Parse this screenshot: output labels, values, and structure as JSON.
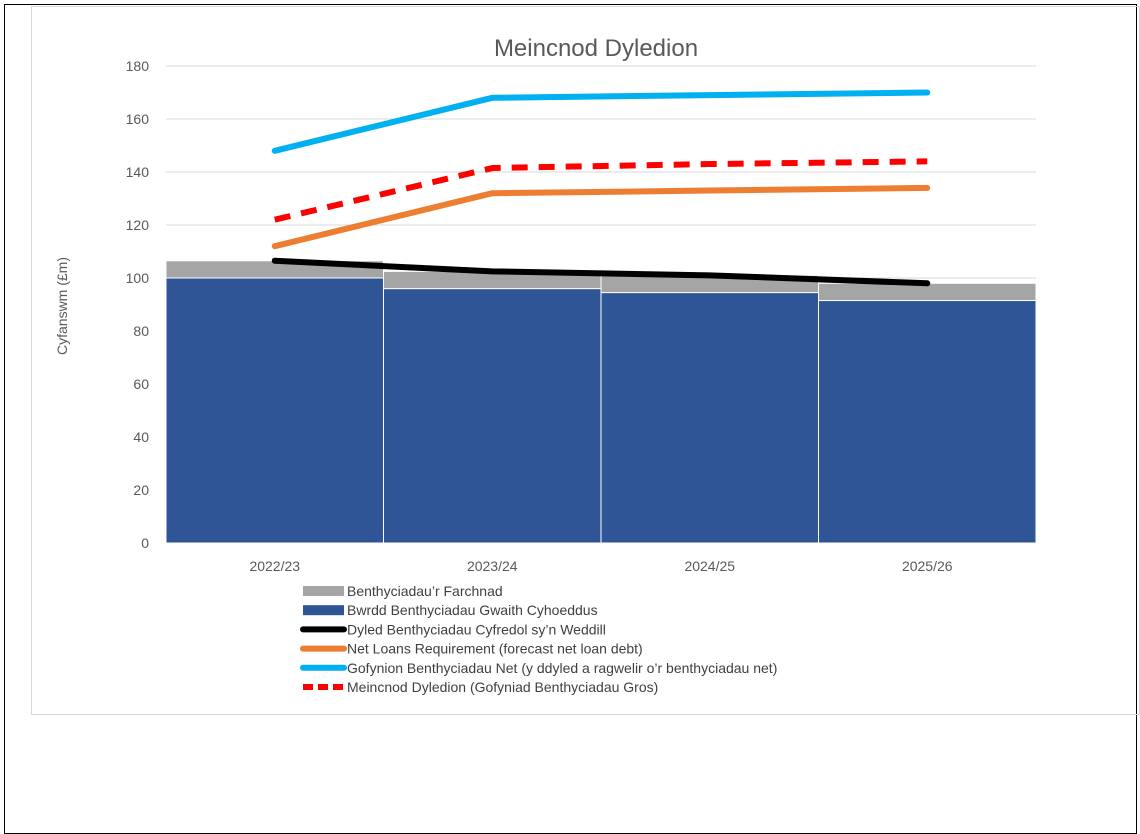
{
  "chart_data": {
    "type": "bar",
    "stacked": true,
    "title": "Meincnod Dyledion",
    "xlabel": "",
    "ylabel": "Cyfanswm (£m)",
    "ylim": [
      0,
      180
    ],
    "yticks": [
      0,
      20,
      40,
      60,
      80,
      100,
      120,
      140,
      160,
      180
    ],
    "grid": true,
    "legend_position": "bottom",
    "categories": [
      "2022/23",
      "2023/24",
      "2024/25",
      "2025/26"
    ],
    "bar_series": [
      {
        "name": "Bwrdd Benthyciadau Gwaith Cyhoeddus",
        "color": "#2f5597",
        "values": [
          100,
          96,
          94.5,
          91.5
        ]
      },
      {
        "name": "Benthyciadau’r Farchnad",
        "color": "#a5a5a5",
        "values": [
          6.5,
          6.5,
          6.5,
          6.5
        ]
      }
    ],
    "line_series": [
      {
        "name": "Dyled Benthyciadau Cyfredol sy’n Weddill",
        "color": "#000000",
        "dashed": false,
        "values": [
          106.5,
          102.5,
          101,
          98
        ]
      },
      {
        "name": "Net Loans Requirement (forecast net loan debt)",
        "color": "#ed7d31",
        "dashed": false,
        "values": [
          112,
          132,
          133,
          134
        ]
      },
      {
        "name": "Gofynion Benthyciadau Net (y ddyled a ragwelir o’r benthyciadau net)",
        "color": "#00b0f0",
        "dashed": false,
        "values": [
          148,
          168,
          169,
          170
        ]
      },
      {
        "name": "Meincnod Dyledion (Gofyniad Benthyciadau Gros)",
        "color": "#ff0000",
        "dashed": true,
        "values": [
          122,
          141.5,
          143,
          144
        ]
      }
    ],
    "legend_order": [
      "Benthyciadau’r Farchnad",
      "Bwrdd Benthyciadau Gwaith Cyhoeddus",
      "Dyled Benthyciadau Cyfredol sy’n Weddill",
      "Net Loans Requirement (forecast net loan debt)",
      "Gofynion Benthyciadau Net (y ddyled a ragwelir o’r benthyciadau net)",
      "Meincnod Dyledion (Gofyniad Benthyciadau Gros)"
    ]
  }
}
